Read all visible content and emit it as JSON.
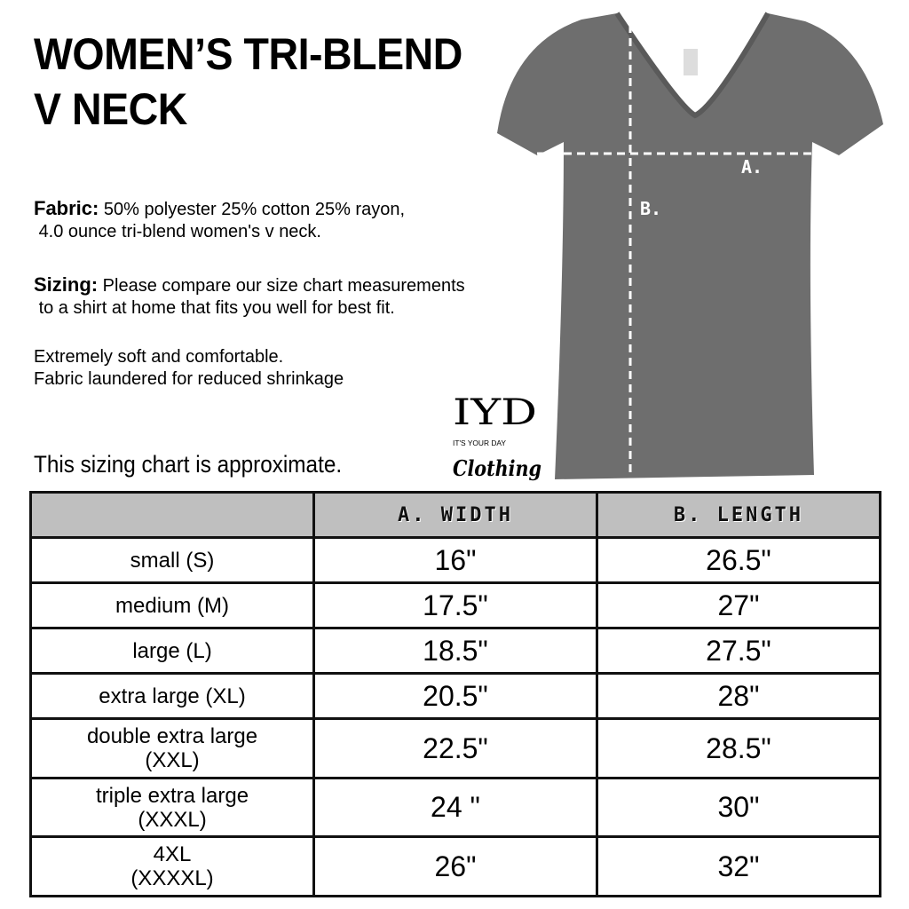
{
  "title": {
    "line1": "WOMEN’S TRI-BLEND",
    "line2": "V NECK"
  },
  "fabric": {
    "label": "Fabric:",
    "text": " 50% polyester 25% cotton 25% rayon,",
    "text2": "4.0 ounce tri-blend women's v neck."
  },
  "sizing": {
    "label": "Sizing:",
    "text": " Please compare our size chart measurements",
    "text2": "to a shirt at home that fits you well for best fit."
  },
  "notes": [
    "Extremely soft and comfortable.",
    "Fabric laundered for reduced shrinkage"
  ],
  "approx_note": "This sizing chart is approximate.",
  "diagram": {
    "label_a": "A.",
    "label_b": "B.",
    "shirt_color": "#6e6e6e"
  },
  "logo": {
    "main": "IYD",
    "tagline": "IT'S YOUR DAY",
    "script": "Clothing"
  },
  "table": {
    "headers": [
      "",
      "A. WIDTH",
      "B. LENGTH"
    ],
    "rows": [
      {
        "size": "small (S)",
        "width": "16\"",
        "length": "26.5\""
      },
      {
        "size": "medium (M)",
        "width": "17.5\"",
        "length": "27\""
      },
      {
        "size": "large (L)",
        "width": "18.5\"",
        "length": "27.5\""
      },
      {
        "size": "extra large (XL)",
        "width": "20.5\"",
        "length": "28\""
      },
      {
        "size": "double extra large",
        "size2": "(XXL)",
        "width": "22.5\"",
        "length": "28.5\""
      },
      {
        "size": "triple extra large",
        "size2": "(XXXL)",
        "width": "24 \"",
        "length": "30\""
      },
      {
        "size": "4XL",
        "size2": "(XXXXL)",
        "width": "26\"",
        "length": "32\""
      }
    ]
  }
}
